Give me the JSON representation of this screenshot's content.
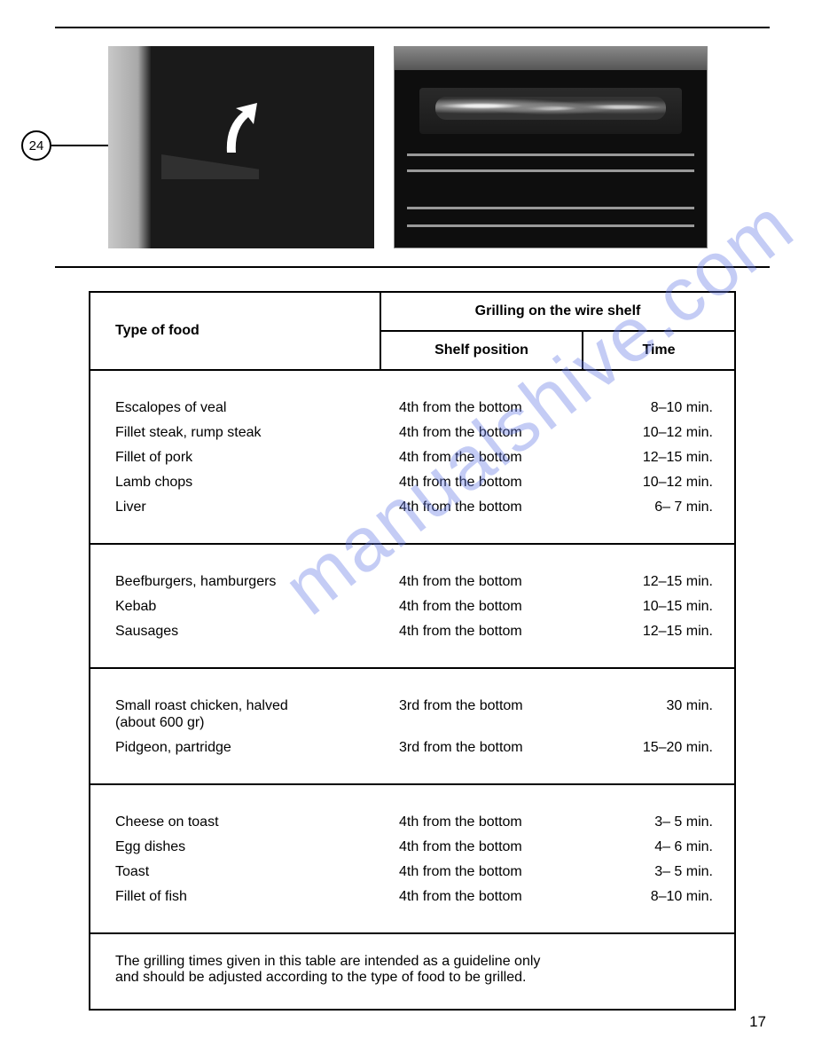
{
  "callout_label": "24",
  "header": {
    "type_of_food": "Type of food",
    "grilling_merged": "Grilling on the wire shelf",
    "shelf_position": "Shelf position",
    "time": "Time"
  },
  "sections": [
    {
      "rows": [
        {
          "food": "Escalopes of veal",
          "pos": "4th from the bottom",
          "time": "8–10 min."
        },
        {
          "food": "Fillet steak, rump steak",
          "pos": "4th from the bottom",
          "time": "10–12 min."
        },
        {
          "food": "Fillet of pork",
          "pos": "4th from the bottom",
          "time": "12–15 min."
        },
        {
          "food": "Lamb chops",
          "pos": "4th from the bottom",
          "time": "10–12 min."
        },
        {
          "food": "Liver",
          "pos": "4th from the bottom",
          "time": "6–  7 min."
        }
      ]
    },
    {
      "rows": [
        {
          "food": "Beefburgers, hamburgers",
          "pos": "4th from the bottom",
          "time": "12–15 min."
        },
        {
          "food": "Kebab",
          "pos": "4th from the bottom",
          "time": "10–15 min."
        },
        {
          "food": "Sausages",
          "pos": "4th from the bottom",
          "time": "12–15 min."
        }
      ]
    },
    {
      "rows": [
        {
          "food": "Small roast chicken, halved",
          "sub": "(about 600 gr)",
          "pos": "3rd from the bottom",
          "time": "30 min."
        },
        {
          "food": "Pidgeon, partridge",
          "pos": "3rd from the bottom",
          "time": "15–20 min."
        }
      ]
    },
    {
      "rows": [
        {
          "food": "Cheese on toast",
          "pos": "4th from the bottom",
          "time": "3–  5 min."
        },
        {
          "food": "Egg dishes",
          "pos": "4th from the bottom",
          "time": "4–  6 min."
        },
        {
          "food": "Toast",
          "pos": "4th from the bottom",
          "time": "3–  5 min."
        },
        {
          "food": "Fillet of fish",
          "pos": "4th from the bottom",
          "time": "8–10 min."
        }
      ]
    }
  ],
  "footnote_l1": "The grilling times given in this table are intended as a guideline only",
  "footnote_l2": "and should be adjusted according to the type of food to be grilled.",
  "watermark": "manualshive.com",
  "page_number": "17",
  "colors": {
    "text": "#000000",
    "border": "#000000",
    "watermark": "rgba(100,120,230,0.38)",
    "bg": "#ffffff"
  }
}
